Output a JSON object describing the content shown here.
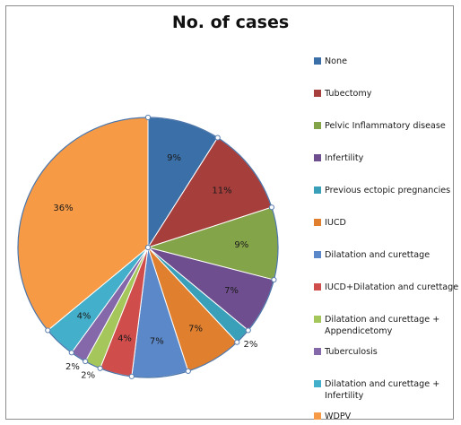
{
  "chart_data": {
    "type": "pie",
    "title": "No. of cases",
    "categories": [
      "None",
      "Tubectomy",
      "Pelvic Inflammatory disease",
      "Infertility",
      "Previous ectopic pregnancies",
      "IUCD",
      "Dilatation and curettage",
      "IUCD+Dilatation and curettage",
      "Dilatation and curettage + Appendicetomy",
      "Tuberculosis",
      "Dilatation and curettage + Infertility",
      "WDPV"
    ],
    "values": [
      9,
      11,
      9,
      7,
      2,
      7,
      7,
      4,
      2,
      2,
      4,
      36
    ],
    "data_labels": [
      "9%",
      "11%",
      "9%",
      "7%",
      "2%",
      "7%",
      "7%",
      "4%",
      "2%",
      "2%",
      "4%",
      "36%"
    ],
    "colors": [
      "#3A6FA8",
      "#A63E3C",
      "#84A449",
      "#6E4E8E",
      "#3A9FB8",
      "#E07F2E",
      "#5B88C9",
      "#CF4E4C",
      "#A5C65A",
      "#8468A9",
      "#44AFCB",
      "#F79A45"
    ],
    "legend_position": "right"
  }
}
